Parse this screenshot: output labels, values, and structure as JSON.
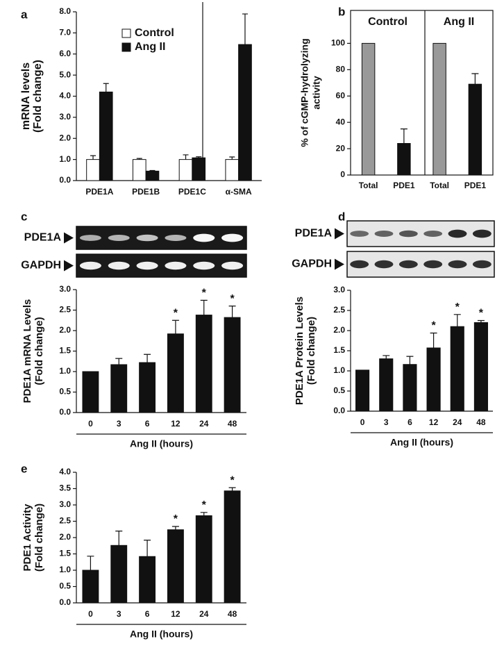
{
  "chart_data": [
    {
      "type": "bar",
      "panel": "a",
      "ylabel": [
        "mRNA levels",
        "(Fold change)"
      ],
      "categories": [
        "PDE1A",
        "PDE1B",
        "PDE1C",
        "α-SMA"
      ],
      "series": [
        {
          "name": "Control",
          "color": "#ffffff",
          "values": [
            1.0,
            1.0,
            1.0,
            1.0
          ],
          "errors": [
            0.18,
            0.05,
            0.22,
            0.12
          ]
        },
        {
          "name": "Ang II",
          "color": "#111111",
          "values": [
            4.2,
            0.45,
            1.08,
            6.45
          ],
          "errors": [
            0.4,
            0.03,
            0.05,
            1.45
          ]
        }
      ],
      "ylim": [
        0,
        8
      ],
      "yticks": [
        {
          "value": 0,
          "label": "0.0"
        },
        {
          "value": 1,
          "label": "1.0"
        },
        {
          "value": 2,
          "label": "2.0"
        },
        {
          "value": 3,
          "label": "3.0"
        },
        {
          "value": 4,
          "label": "4.0"
        },
        {
          "value": 5,
          "label": "5.0"
        },
        {
          "value": 6,
          "label": "6.0"
        },
        {
          "value": 7,
          "label": "7.0"
        },
        {
          "value": 8,
          "label": "8.0"
        }
      ]
    },
    {
      "type": "bar",
      "panel": "b",
      "ylabel": [
        "% of cGMP-hydrolyzing",
        "activity"
      ],
      "groups": [
        "Control",
        "Ang II"
      ],
      "categories": [
        "Total",
        "PDE1",
        "Total",
        "PDE1"
      ],
      "values": [
        100,
        24,
        100,
        69
      ],
      "errors": [
        null,
        11,
        null,
        8
      ],
      "colors": [
        "#999999",
        "#111111",
        "#999999",
        "#111111"
      ],
      "ylim": [
        0,
        125
      ],
      "yticks": [
        0,
        20,
        40,
        60,
        80,
        100
      ]
    },
    {
      "type": "bar",
      "panel": "c",
      "blot": [
        "PDE1A",
        "GAPDH"
      ],
      "ylabel": [
        "PDE1A mRNA Levels",
        "(Fold change)"
      ],
      "xlabel": "Ang II (hours)",
      "categories": [
        "0",
        "3",
        "6",
        "12",
        "24",
        "48"
      ],
      "values": [
        1.0,
        1.17,
        1.22,
        1.92,
        2.38,
        2.32
      ],
      "errors": [
        null,
        0.15,
        0.2,
        0.33,
        0.36,
        0.28
      ],
      "markers": [
        null,
        null,
        null,
        "*",
        "*",
        "*"
      ],
      "color": "#111111",
      "ylim": [
        0,
        3
      ],
      "yticks": [
        {
          "value": 0,
          "label": "0.0"
        },
        {
          "value": 0.5,
          "label": "0.5"
        },
        {
          "value": 1,
          "label": "1.0"
        },
        {
          "value": 1.5,
          "label": "1.5"
        },
        {
          "value": 2,
          "label": "2.0"
        },
        {
          "value": 2.5,
          "label": "2.5"
        },
        {
          "value": 3,
          "label": "3.0"
        }
      ]
    },
    {
      "type": "bar",
      "panel": "d",
      "blot": [
        "PDE1A",
        "GAPDH"
      ],
      "ylabel": [
        "PDE1A Protein Levels",
        "(Fold change)"
      ],
      "xlabel": "Ang II  (hours)",
      "categories": [
        "0",
        "3",
        "6",
        "12",
        "24",
        "48"
      ],
      "values": [
        1.02,
        1.3,
        1.16,
        1.57,
        2.1,
        2.2
      ],
      "errors": [
        null,
        0.08,
        0.2,
        0.37,
        0.3,
        0.05
      ],
      "markers": [
        null,
        null,
        null,
        "*",
        "*",
        "*"
      ],
      "color": "#111111",
      "ylim": [
        0,
        3
      ],
      "yticks": [
        {
          "value": 0,
          "label": "0.0"
        },
        {
          "value": 0.5,
          "label": "0.5"
        },
        {
          "value": 1,
          "label": "1.0"
        },
        {
          "value": 1.5,
          "label": "1.5"
        },
        {
          "value": 2,
          "label": "2.0"
        },
        {
          "value": 2.5,
          "label": "2.5"
        },
        {
          "value": 3,
          "label": "3.0"
        }
      ]
    },
    {
      "type": "bar",
      "panel": "e",
      "ylabel": [
        "PDE1 Activity",
        "(Fold change)"
      ],
      "xlabel": "Ang II  (hours)",
      "categories": [
        "0",
        "3",
        "6",
        "12",
        "24",
        "48"
      ],
      "values": [
        1.0,
        1.76,
        1.42,
        2.24,
        2.67,
        3.43
      ],
      "errors": [
        0.43,
        0.44,
        0.5,
        0.1,
        0.1,
        0.1
      ],
      "markers": [
        null,
        null,
        null,
        "*",
        "*",
        "*"
      ],
      "color": "#111111",
      "ylim": [
        0,
        4
      ],
      "yticks": [
        {
          "value": 0,
          "label": "0.0"
        },
        {
          "value": 0.5,
          "label": "0.5"
        },
        {
          "value": 1,
          "label": "1.0"
        },
        {
          "value": 1.5,
          "label": "1.5"
        },
        {
          "value": 2,
          "label": "2.0"
        },
        {
          "value": 2.5,
          "label": "2.5"
        },
        {
          "value": 3,
          "label": "3.0"
        },
        {
          "value": 3.5,
          "label": "3.5"
        },
        {
          "value": 4,
          "label": "4.0"
        }
      ]
    }
  ]
}
